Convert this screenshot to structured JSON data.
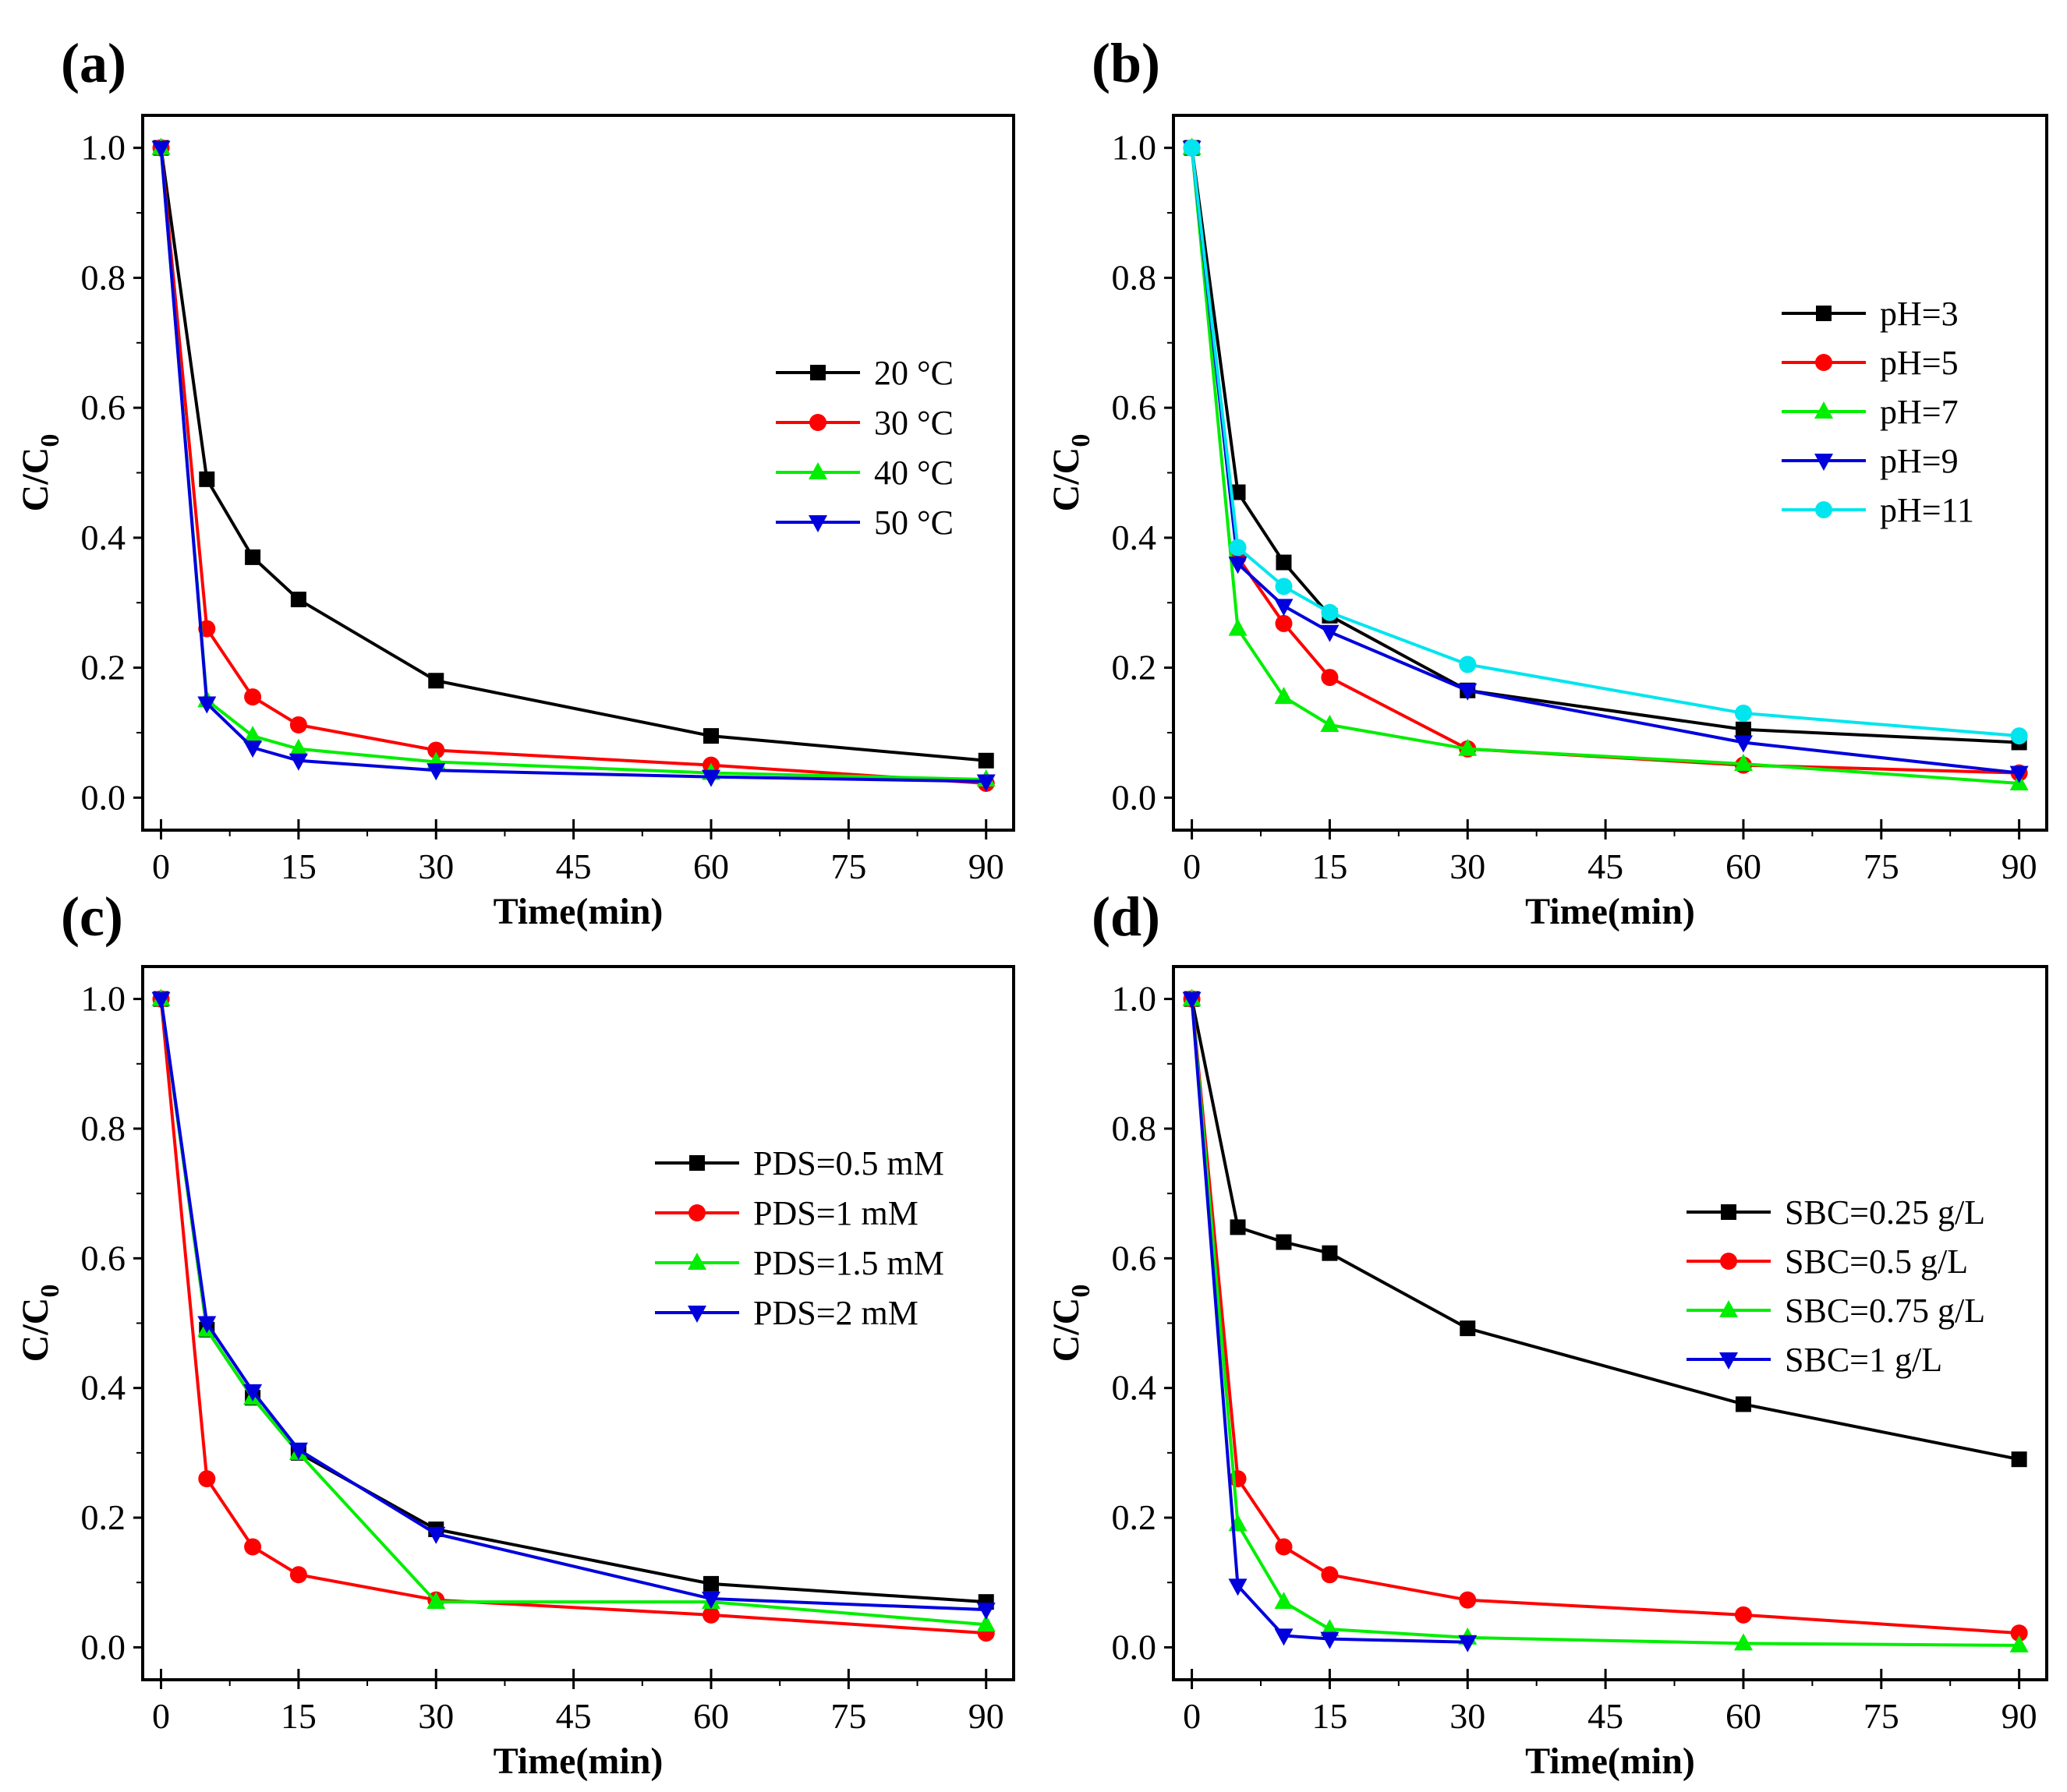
{
  "chart_data": [
    {
      "type": "line",
      "panel": "(a)",
      "xlabel": "Time(min)",
      "ylabel": "C/C",
      "ylabel_sub": "0",
      "xlim": [
        -2,
        93
      ],
      "ylim": [
        -0.05,
        1.05
      ],
      "xticks": [
        0,
        15,
        30,
        45,
        60,
        75,
        90
      ],
      "yticks": [
        "0.0",
        "0.2",
        "0.4",
        "0.6",
        "0.8",
        "1.0"
      ],
      "legend_position": "right-middle",
      "series": [
        {
          "name": "20 °C",
          "color": "#000000",
          "marker": "square",
          "x": [
            0,
            5,
            10,
            15,
            30,
            60,
            90
          ],
          "y": [
            1.0,
            0.49,
            0.37,
            0.305,
            0.18,
            0.095,
            0.057
          ]
        },
        {
          "name": "30 °C",
          "color": "#ff0000",
          "marker": "circle",
          "x": [
            0,
            5,
            10,
            15,
            30,
            60,
            90
          ],
          "y": [
            1.0,
            0.26,
            0.155,
            0.112,
            0.073,
            0.05,
            0.022
          ]
        },
        {
          "name": "40 °C",
          "color": "#00ee00",
          "marker": "triangle-up",
          "x": [
            0,
            5,
            10,
            15,
            30,
            60,
            90
          ],
          "y": [
            1.0,
            0.15,
            0.095,
            0.075,
            0.055,
            0.038,
            0.028
          ]
        },
        {
          "name": "50 °C",
          "color": "#0000dd",
          "marker": "triangle-down",
          "x": [
            0,
            5,
            10,
            15,
            30,
            60,
            90
          ],
          "y": [
            1.0,
            0.145,
            0.077,
            0.057,
            0.042,
            0.032,
            0.025
          ]
        }
      ]
    },
    {
      "type": "line",
      "panel": "(b)",
      "xlabel": "Time(min)",
      "ylabel": "C/C",
      "ylabel_sub": "0",
      "xlim": [
        -2,
        93
      ],
      "ylim": [
        -0.05,
        1.05
      ],
      "xticks": [
        0,
        15,
        30,
        45,
        60,
        75,
        90
      ],
      "yticks": [
        "0.0",
        "0.2",
        "0.4",
        "0.6",
        "0.8",
        "1.0"
      ],
      "legend_position": "right-upper",
      "series": [
        {
          "name": "pH=3",
          "color": "#000000",
          "marker": "square",
          "x": [
            0,
            5,
            10,
            15,
            30,
            60,
            90
          ],
          "y": [
            1.0,
            0.47,
            0.362,
            0.28,
            0.165,
            0.105,
            0.085
          ]
        },
        {
          "name": "pH=5",
          "color": "#ff0000",
          "marker": "circle",
          "x": [
            0,
            5,
            10,
            15,
            30,
            60,
            90
          ],
          "y": [
            1.0,
            0.37,
            0.268,
            0.185,
            0.075,
            0.05,
            0.038
          ]
        },
        {
          "name": "pH=7",
          "color": "#00ee00",
          "marker": "triangle-up",
          "x": [
            0,
            5,
            10,
            15,
            30,
            60,
            90
          ],
          "y": [
            1.0,
            0.26,
            0.155,
            0.112,
            0.075,
            0.052,
            0.022
          ]
        },
        {
          "name": "pH=9",
          "color": "#0000dd",
          "marker": "triangle-down",
          "x": [
            0,
            5,
            10,
            15,
            30,
            60,
            90
          ],
          "y": [
            1.0,
            0.36,
            0.295,
            0.255,
            0.165,
            0.085,
            0.038
          ]
        },
        {
          "name": "pH=11",
          "color": "#00e5ee",
          "marker": "circle",
          "x": [
            0,
            5,
            10,
            15,
            30,
            60,
            90
          ],
          "y": [
            1.0,
            0.385,
            0.325,
            0.285,
            0.205,
            0.13,
            0.095
          ]
        }
      ]
    },
    {
      "type": "line",
      "panel": "(c)",
      "xlabel": "Time(min)",
      "ylabel": "C/C",
      "ylabel_sub": "0",
      "xlim": [
        -2,
        93
      ],
      "ylim": [
        -0.05,
        1.05
      ],
      "xticks": [
        0,
        15,
        30,
        45,
        60,
        75,
        90
      ],
      "yticks": [
        "0.0",
        "0.2",
        "0.4",
        "0.6",
        "0.8",
        "1.0"
      ],
      "legend_position": "right-middle",
      "series": [
        {
          "name": "PDS=0.5 mM",
          "color": "#000000",
          "marker": "square",
          "x": [
            0,
            5,
            10,
            15,
            30,
            60,
            90
          ],
          "y": [
            1.0,
            0.49,
            0.385,
            0.3,
            0.182,
            0.098,
            0.07
          ]
        },
        {
          "name": "PDS=1 mM",
          "color": "#ff0000",
          "marker": "circle",
          "x": [
            0,
            5,
            10,
            15,
            30,
            60,
            90
          ],
          "y": [
            1.0,
            0.26,
            0.155,
            0.112,
            0.073,
            0.05,
            0.022
          ]
        },
        {
          "name": "PDS=1.5 mM",
          "color": "#00ee00",
          "marker": "triangle-up",
          "x": [
            0,
            5,
            10,
            15,
            30,
            60,
            90
          ],
          "y": [
            1.0,
            0.49,
            0.385,
            0.3,
            0.07,
            0.07,
            0.035
          ]
        },
        {
          "name": "PDS=2 mM",
          "color": "#0000dd",
          "marker": "triangle-down",
          "x": [
            0,
            5,
            10,
            15,
            30,
            60,
            90
          ],
          "y": [
            1.0,
            0.5,
            0.395,
            0.305,
            0.175,
            0.075,
            0.058
          ]
        }
      ]
    },
    {
      "type": "line",
      "panel": "(d)",
      "xlabel": "Time(min)",
      "ylabel": "C/C",
      "ylabel_sub": "0",
      "xlim": [
        -2,
        93
      ],
      "ylim": [
        -0.05,
        1.05
      ],
      "xticks": [
        0,
        15,
        30,
        45,
        60,
        75,
        90
      ],
      "yticks": [
        "0.0",
        "0.2",
        "0.4",
        "0.6",
        "0.8",
        "1.0"
      ],
      "legend_position": "right-middle",
      "series": [
        {
          "name": "SBC=0.25 g/L",
          "color": "#000000",
          "marker": "square",
          "x": [
            0,
            5,
            10,
            15,
            30,
            60,
            90
          ],
          "y": [
            1.0,
            0.648,
            0.625,
            0.608,
            0.492,
            0.375,
            0.29
          ]
        },
        {
          "name": "SBC=0.5 g/L",
          "color": "#ff0000",
          "marker": "circle",
          "x": [
            0,
            5,
            10,
            15,
            30,
            60,
            90
          ],
          "y": [
            1.0,
            0.26,
            0.155,
            0.112,
            0.073,
            0.05,
            0.022
          ]
        },
        {
          "name": "SBC=0.75 g/L",
          "color": "#00ee00",
          "marker": "triangle-up",
          "x": [
            0,
            5,
            10,
            15,
            30,
            60,
            90
          ],
          "y": [
            1.0,
            0.19,
            0.07,
            0.028,
            0.015,
            0.006,
            0.003
          ]
        },
        {
          "name": "SBC=1 g/L",
          "color": "#0000dd",
          "marker": "triangle-down",
          "x": [
            0,
            5,
            10,
            15,
            30
          ],
          "y": [
            1.0,
            0.095,
            0.018,
            0.013,
            0.008
          ]
        }
      ]
    }
  ]
}
